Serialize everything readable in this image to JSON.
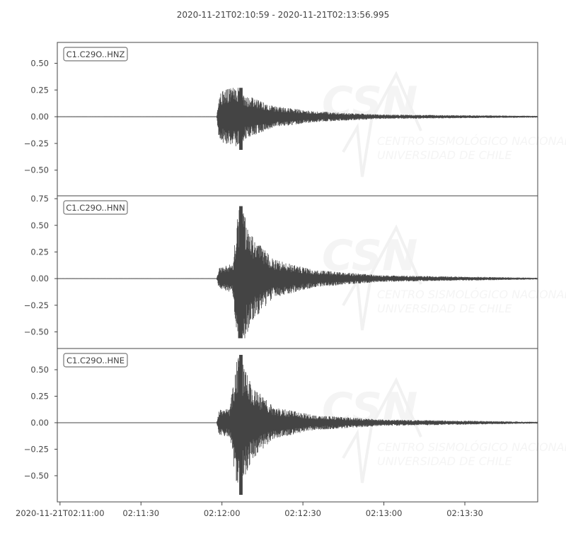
{
  "chart_data": {
    "type": "line",
    "title": "2020-11-21T02:10:59  -  2020-11-21T02:13:56.995",
    "start_time": "2020-11-21T02:10:59",
    "end_time": "2020-11-21T02:13:56.995",
    "x_ticks": [
      "2020-11-21T02:11:00",
      "02:11:30",
      "02:12:00",
      "02:12:30",
      "02:13:00",
      "02:13:30"
    ],
    "x_tick_seconds": [
      1,
      31,
      61,
      91,
      121,
      151
    ],
    "grid": false,
    "line_color": "#444444",
    "watermark": {
      "logo": "CSN",
      "line1": "CENTRO SISMOLÓGICO NACIONAL",
      "line2": "UNIVERSIDAD DE CHILE"
    },
    "series": [
      {
        "name": "C1.C29O..HNZ",
        "ylim": [
          -0.74,
          0.695
        ],
        "y_ticks": [
          0.5,
          0.25,
          0.0,
          -0.25,
          -0.5
        ],
        "y_tick_labels": [
          "0.50",
          "0.25",
          "0.00",
          "−0.25",
          "−0.50"
        ],
        "onset": "02:11:58",
        "max": 0.27,
        "min": -0.31,
        "envelope": [
          [
            59,
            0
          ],
          [
            60,
            0.22
          ],
          [
            62,
            0.25
          ],
          [
            67,
            0.28
          ],
          [
            70,
            0.2
          ],
          [
            80,
            0.1
          ],
          [
            95,
            0.05
          ],
          [
            120,
            0.02
          ],
          [
            178,
            0.008
          ]
        ]
      },
      {
        "name": "C1.C29O..HNN",
        "ylim": [
          -0.656,
          0.777
        ],
        "y_ticks": [
          0.75,
          0.5,
          0.25,
          0.0,
          -0.25,
          -0.5
        ],
        "y_tick_labels": [
          "0.75",
          "0.50",
          "0.25",
          "0.00",
          "−0.25",
          "−0.50"
        ],
        "onset": "02:11:58",
        "max": 0.68,
        "min": -0.56,
        "envelope": [
          [
            59,
            0
          ],
          [
            60,
            0.1
          ],
          [
            65,
            0.14
          ],
          [
            66,
            0.4
          ],
          [
            67,
            0.62
          ],
          [
            68,
            0.68
          ],
          [
            72,
            0.4
          ],
          [
            80,
            0.18
          ],
          [
            95,
            0.08
          ],
          [
            120,
            0.03
          ],
          [
            178,
            0.008
          ]
        ]
      },
      {
        "name": "C1.C29O..HNE",
        "ylim": [
          -0.747,
          0.7
        ],
        "y_ticks": [
          0.5,
          0.25,
          0.0,
          -0.25,
          -0.5
        ],
        "y_tick_labels": [
          "0.50",
          "0.25",
          "0.00",
          "−0.25",
          "−0.50"
        ],
        "onset": "02:11:58",
        "max": 0.64,
        "min": -0.68,
        "envelope": [
          [
            59,
            0
          ],
          [
            60,
            0.12
          ],
          [
            64,
            0.13
          ],
          [
            65,
            0.35
          ],
          [
            67,
            0.66
          ],
          [
            72,
            0.35
          ],
          [
            80,
            0.15
          ],
          [
            95,
            0.07
          ],
          [
            120,
            0.03
          ],
          [
            178,
            0.008
          ]
        ]
      }
    ]
  }
}
